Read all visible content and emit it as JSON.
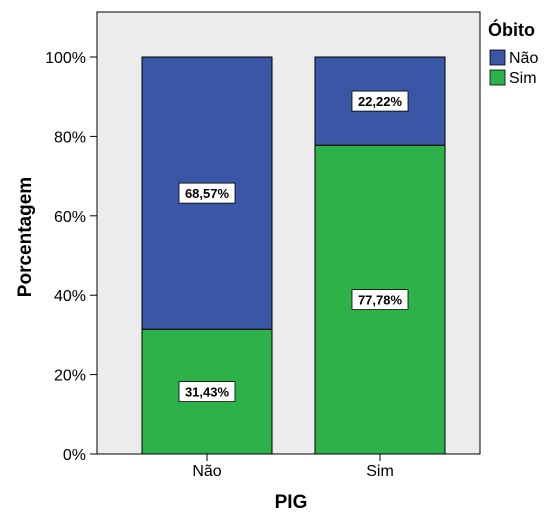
{
  "chart_data": {
    "type": "bar",
    "stacked": true,
    "categories": [
      "Não",
      "Sim"
    ],
    "series": [
      {
        "name": "Sim",
        "values": [
          31.43,
          77.78
        ],
        "labels": [
          "31,43%",
          "77,78%"
        ],
        "color": "#2db24a"
      },
      {
        "name": "Não",
        "values": [
          68.57,
          22.22
        ],
        "labels": [
          "68,57%",
          "22,22%"
        ],
        "color": "#3a57a6"
      }
    ],
    "xlabel": "PIG",
    "ylabel": "Porcentagem",
    "ylim": [
      0,
      100
    ],
    "yticks": [
      "0%",
      "20%",
      "40%",
      "60%",
      "80%",
      "100%"
    ],
    "legend": {
      "title": "Óbito",
      "items": [
        {
          "label": "Não",
          "color": "#3a57a6"
        },
        {
          "label": "Sim",
          "color": "#2db24a"
        }
      ],
      "placement": "right"
    },
    "plot_background": "#ececec",
    "grid": false
  }
}
